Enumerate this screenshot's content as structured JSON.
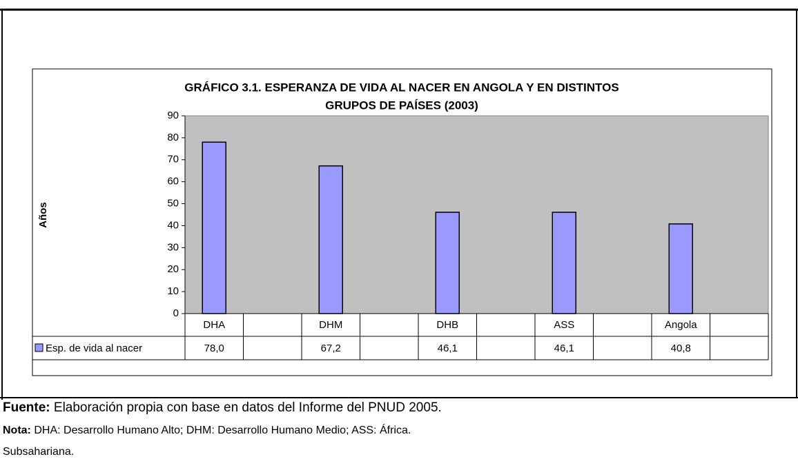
{
  "chart_data": {
    "type": "bar",
    "title": [
      "GRÁFICO 3.1. ESPERANZA DE VIDA AL NACER EN ANGOLA Y EN DISTINTOS",
      "GRUPOS DE PAÍSES (2003)"
    ],
    "y_label": "Años",
    "categories": [
      "DHA",
      null,
      "DHM",
      null,
      "DHB",
      null,
      "ASS",
      null,
      "Angola",
      null
    ],
    "series": [
      {
        "name": "Esp. de vida al nacer",
        "color": "#9999ff",
        "values": [
          78.0,
          null,
          67.2,
          null,
          46.1,
          null,
          46.1,
          null,
          40.8,
          null
        ],
        "value_labels": [
          "78,0",
          null,
          "67,2",
          null,
          "46,1",
          null,
          "46,1",
          null,
          "40,8",
          null
        ]
      }
    ],
    "ylim": [
      0,
      90
    ],
    "yticks": [
      0,
      10,
      20,
      30,
      40,
      50,
      60,
      70,
      80,
      90
    ],
    "grid": false
  },
  "footer": {
    "source_label": "Fuente:",
    "source_text": "Elaboración propia con base en datos del Informe del PNUD 2005.",
    "note_label": "Nota:",
    "note_lines": [
      "DHA: Desarrollo Humano Alto; DHM: Desarrollo Humano Medio; ASS: África.",
      "Subsahariana."
    ]
  }
}
